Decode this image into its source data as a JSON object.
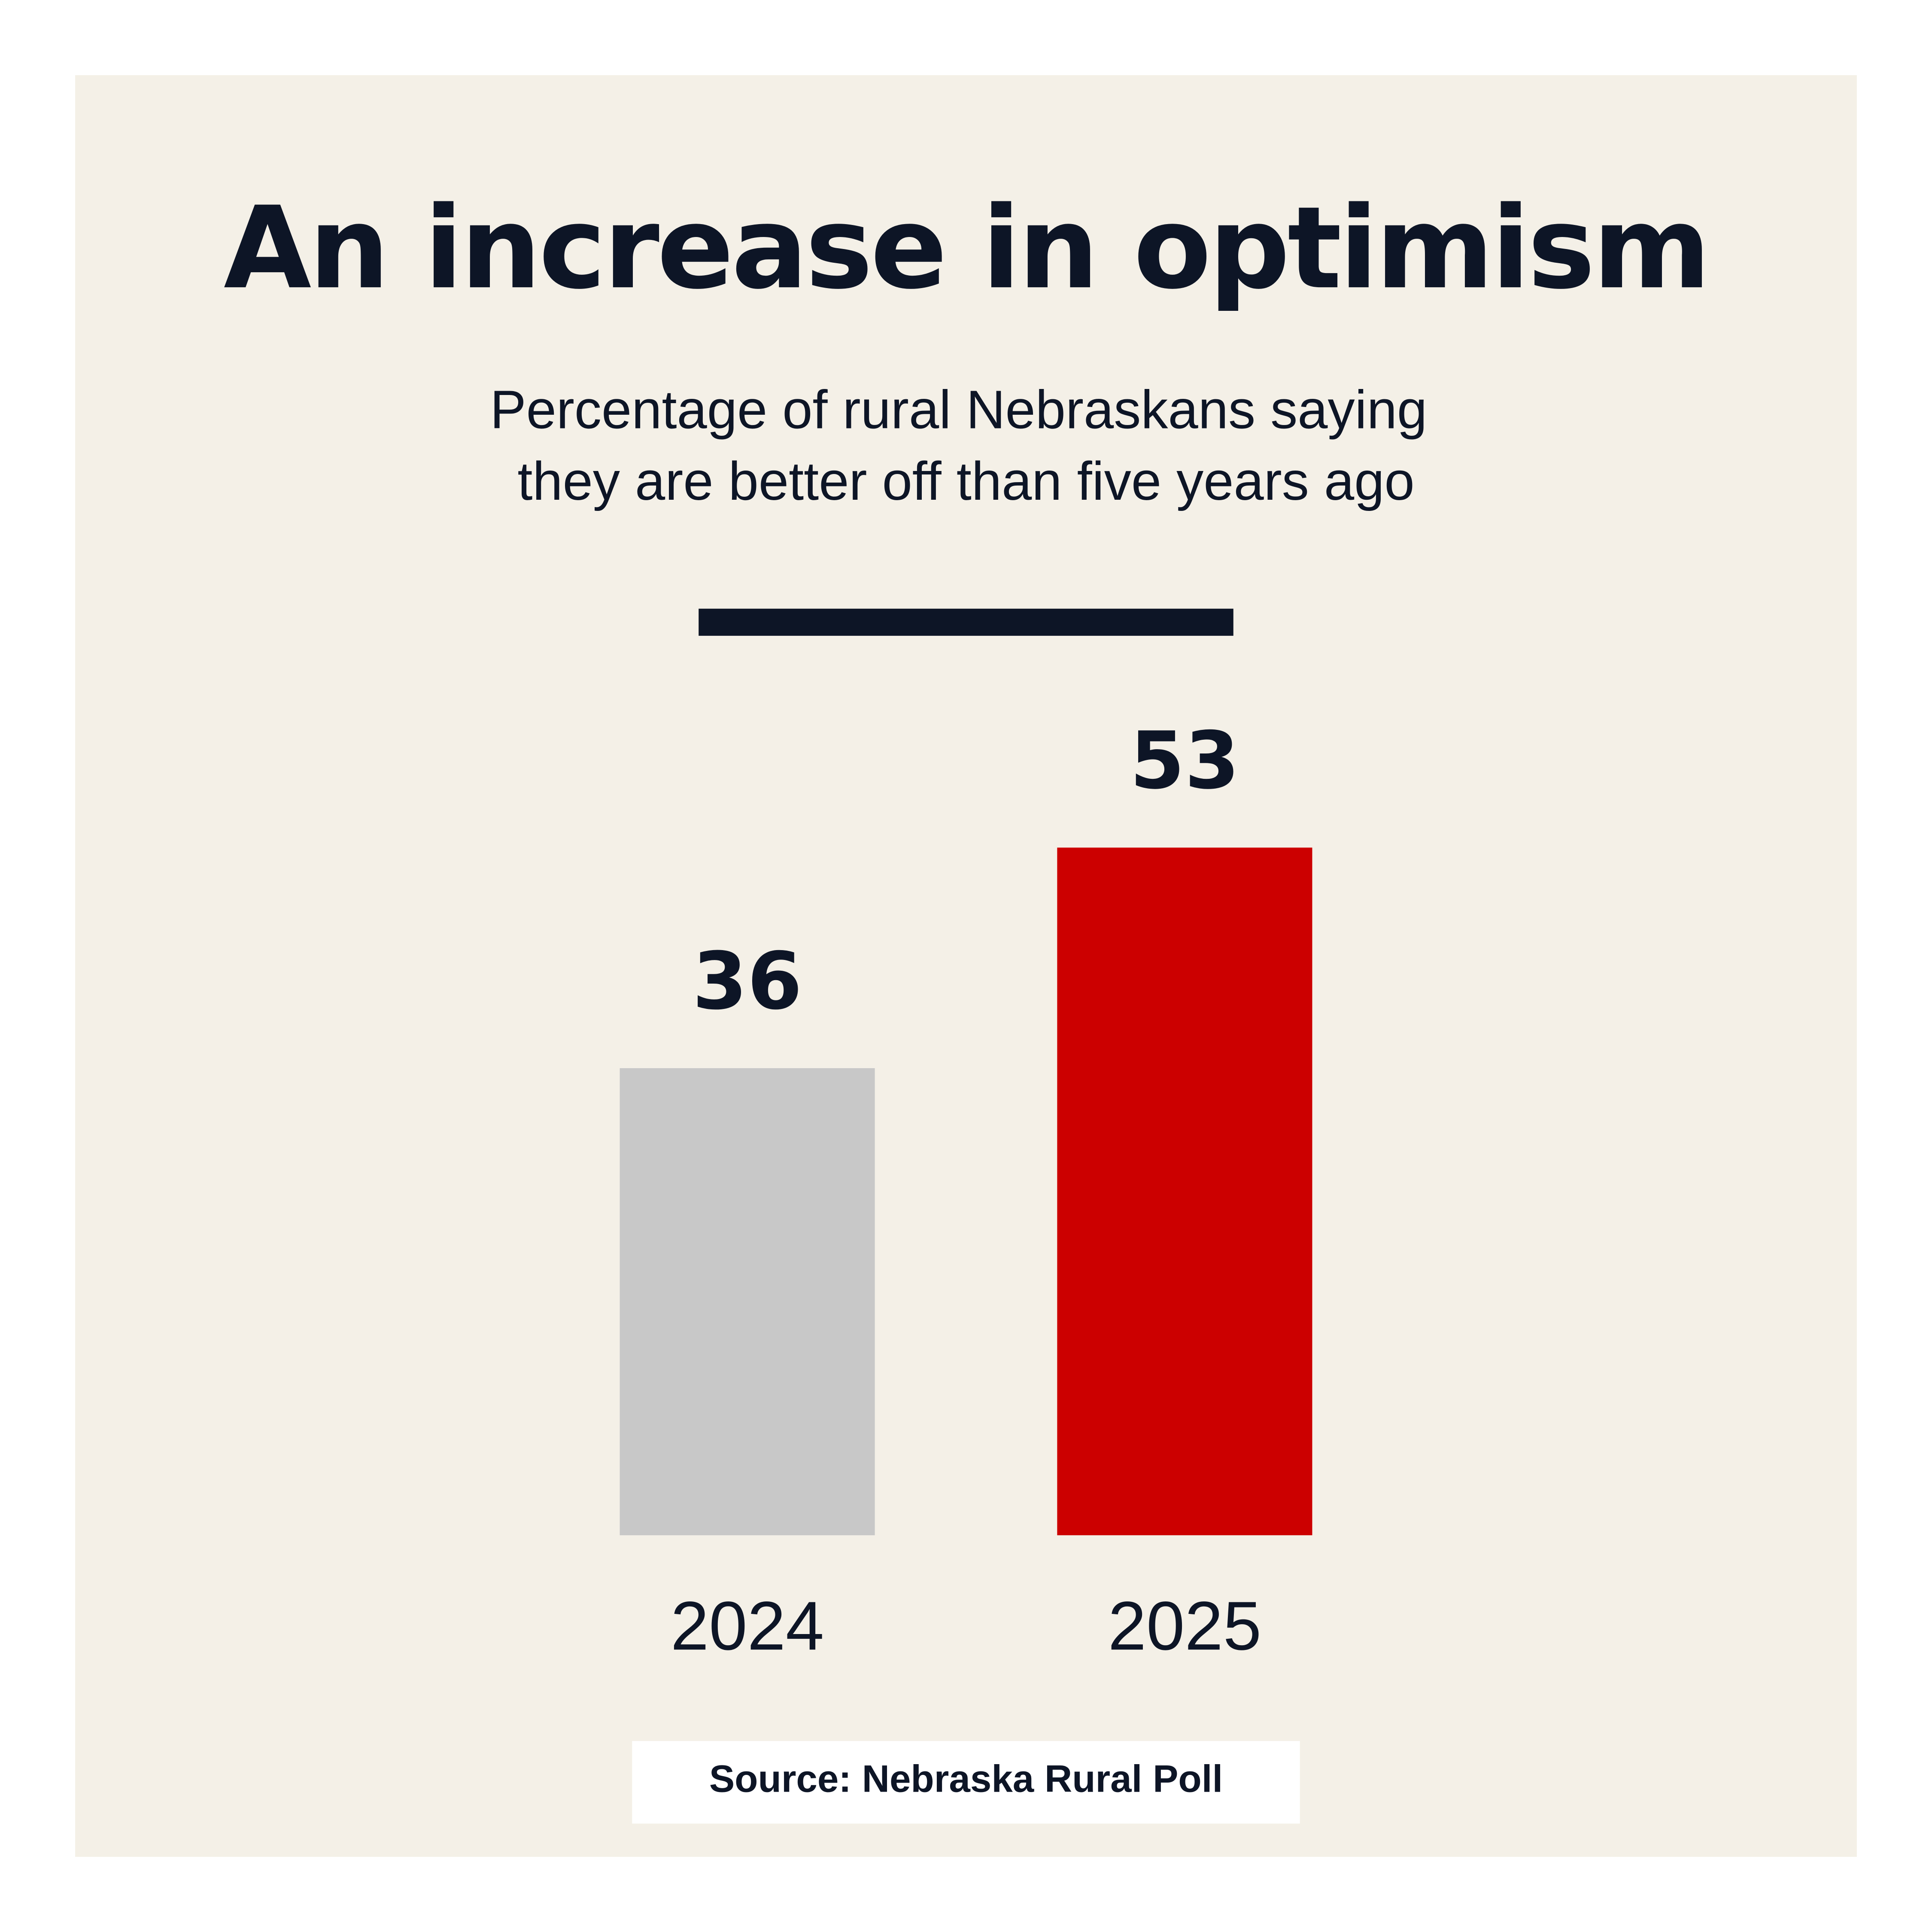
{
  "chart_data": {
    "type": "bar",
    "title": "An increase in optimism",
    "subtitle": [
      "Percentage of rural Nebraskans saying",
      "they are better off than five years ago"
    ],
    "categories": [
      "2024",
      "2025"
    ],
    "values": [
      36,
      53
    ],
    "colors": [
      "#c8c8c8",
      "#cc0000"
    ],
    "ylim": [
      0,
      100
    ],
    "source": "Source: Nebraska Rural Poll"
  }
}
